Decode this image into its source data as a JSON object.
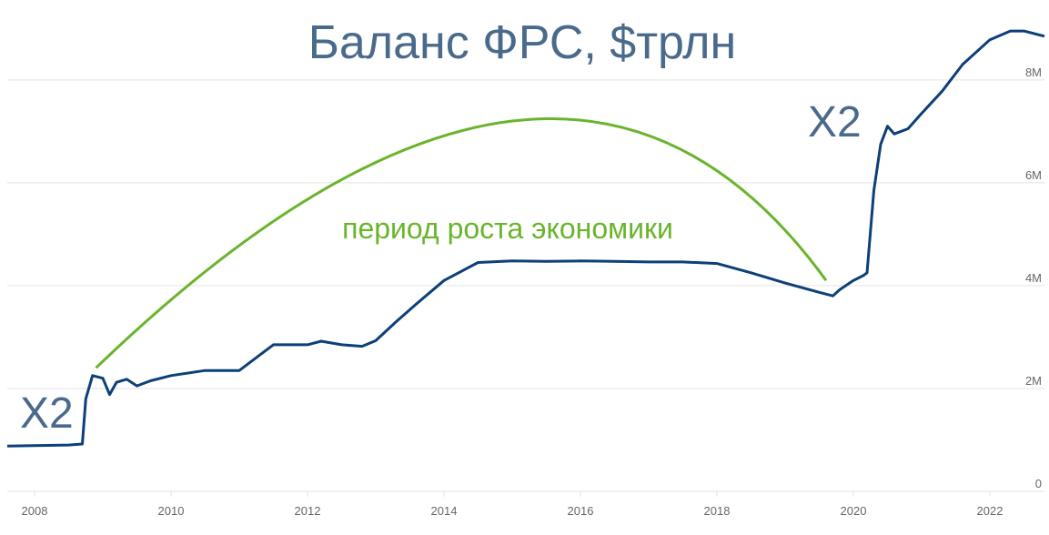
{
  "colors": {
    "line": "#0d3f78",
    "arc": "#6ab42d",
    "title": "#4a6a8c",
    "grid": "#e3e3e3",
    "tick": "#666666"
  },
  "chart_data": {
    "type": "line",
    "title": "Баланс ФРС, $трлн",
    "xlabel": "",
    "ylabel": "",
    "x_ticks": [
      "2008",
      "2010",
      "2012",
      "2014",
      "2016",
      "2018",
      "2020",
      "2022"
    ],
    "y_ticks": [
      "0",
      "2M",
      "4M",
      "6M",
      "8M"
    ],
    "ylim": [
      0,
      9.2
    ],
    "xlim": [
      2007.6,
      2022.8
    ],
    "grid": true,
    "series": [
      {
        "x": [
          2007.6,
          2008.0,
          2008.5,
          2008.7,
          2008.75,
          2008.85,
          2009.0,
          2009.1,
          2009.2,
          2009.35,
          2009.5,
          2009.7,
          2010.0,
          2010.5,
          2011.0,
          2011.5,
          2012.0,
          2012.2,
          2012.5,
          2012.8,
          2013.0,
          2013.3,
          2013.6,
          2014.0,
          2014.5,
          2015.0,
          2015.5,
          2016.0,
          2016.5,
          2017.0,
          2017.5,
          2018.0,
          2018.5,
          2019.0,
          2019.5,
          2019.7,
          2019.8,
          2020.0,
          2020.15,
          2020.2,
          2020.3,
          2020.4,
          2020.5,
          2020.6,
          2020.8,
          2021.0,
          2021.3,
          2021.6,
          2022.0,
          2022.3,
          2022.5,
          2022.8
        ],
        "y": [
          0.88,
          0.89,
          0.9,
          0.92,
          1.8,
          2.25,
          2.2,
          1.88,
          2.12,
          2.18,
          2.05,
          2.15,
          2.25,
          2.35,
          2.35,
          2.85,
          2.85,
          2.92,
          2.85,
          2.82,
          2.93,
          3.3,
          3.65,
          4.1,
          4.45,
          4.48,
          4.47,
          4.48,
          4.47,
          4.46,
          4.46,
          4.43,
          4.25,
          4.05,
          3.87,
          3.8,
          3.92,
          4.1,
          4.2,
          4.25,
          5.85,
          6.75,
          7.1,
          6.95,
          7.05,
          7.35,
          7.78,
          8.3,
          8.78,
          8.95,
          8.95,
          8.85
        ]
      }
    ],
    "annotations": [
      {
        "text": "X2",
        "at": "left spike"
      },
      {
        "text": "X2",
        "at": "right spike"
      },
      {
        "text": "период роста экономики",
        "at": "green arc"
      }
    ],
    "arc": {
      "x_start": 2008.9,
      "x_peak": 2015.0,
      "x_end": 2019.6,
      "y_start": 2.4,
      "y_peak": 7.2,
      "y_end": 4.1
    }
  }
}
